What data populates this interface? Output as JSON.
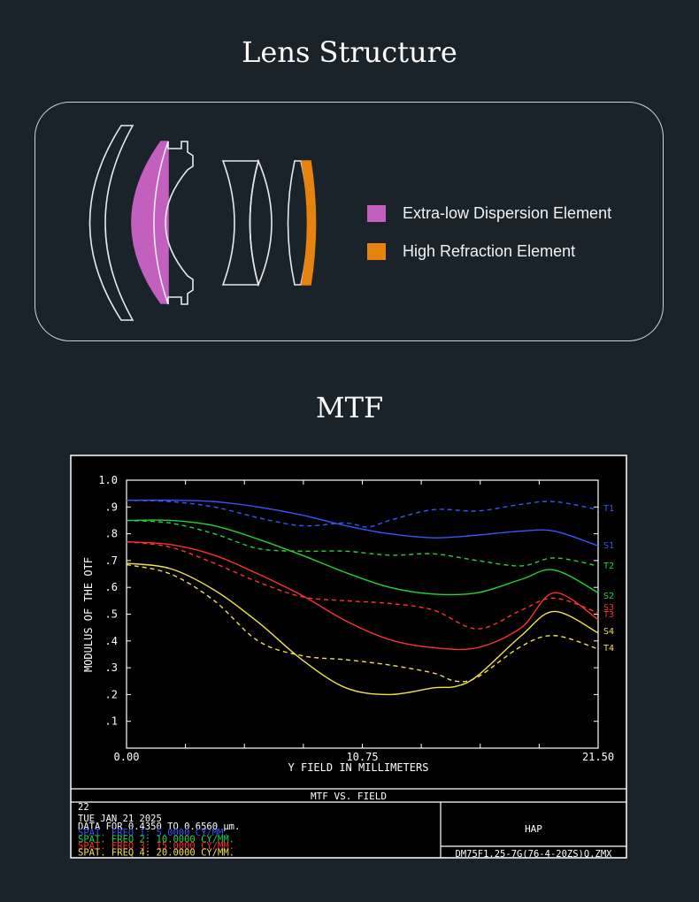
{
  "lens": {
    "title": "Lens Structure",
    "legend": [
      {
        "label": "Extra-low Dispersion Element",
        "color": "#c35fbf"
      },
      {
        "label": "High Refraction Element",
        "color": "#e6830f"
      }
    ]
  },
  "mtf": {
    "title": "MTF",
    "footer": {
      "title": "MTF VS. FIELD",
      "line0": "22",
      "date": "TUE JAN 21 2025",
      "data_range": "DATA FOR 0.4350 TO 0.6560 µm.",
      "freqs": [
        {
          "text": "SPAT. FREQ 1:    5.0000 CY/MM.",
          "color": "#3a55ff"
        },
        {
          "text": "SPAT. FREQ 2:   10.0000 CY/MM.",
          "color": "#23d23a"
        },
        {
          "text": "SPAT. FREQ 3:   15.0000 CY/MM.",
          "color": "#ff3030"
        },
        {
          "text": "SPAT. FREQ 4:   20.0000 CY/MM.",
          "color": "#f2e34a"
        }
      ],
      "company": "HAP",
      "file": "DM75F1.25-7G(76-4-20ZS)Q.ZMX"
    }
  },
  "chart_data": {
    "type": "line",
    "title": "",
    "xlabel": "Y FIELD IN MILLIMETERS",
    "ylabel": "MODULUS OF THE OTF",
    "xlim": [
      0,
      21.5
    ],
    "ylim": [
      0,
      1
    ],
    "xticks": [
      "0.00",
      "10.75",
      "21.50"
    ],
    "yticks": [
      ".1",
      ".2",
      ".3",
      ".4",
      ".5",
      ".6",
      ".7",
      ".8",
      ".9",
      "1.0"
    ],
    "grid": false,
    "series": [
      {
        "name": "T1",
        "style": "dashed",
        "color": "#3a55ff",
        "x": [
          0,
          2,
          4,
          6,
          8,
          10,
          11,
          12,
          14,
          16,
          18,
          19.5,
          21.5
        ],
        "y": [
          0.925,
          0.92,
          0.9,
          0.86,
          0.83,
          0.84,
          0.825,
          0.85,
          0.89,
          0.885,
          0.91,
          0.92,
          0.89
        ]
      },
      {
        "name": "S1",
        "style": "solid",
        "color": "#3a55ff",
        "x": [
          0,
          2,
          4,
          6,
          8,
          10,
          12,
          14,
          16,
          18,
          19.5,
          21.5
        ],
        "y": [
          0.925,
          0.925,
          0.92,
          0.9,
          0.87,
          0.83,
          0.8,
          0.785,
          0.795,
          0.81,
          0.81,
          0.755
        ]
      },
      {
        "name": "T2",
        "style": "dashed",
        "color": "#23d23a",
        "x": [
          0,
          2,
          4,
          6,
          8,
          10,
          12,
          14,
          16,
          18,
          19.5,
          21.5
        ],
        "y": [
          0.85,
          0.84,
          0.8,
          0.745,
          0.735,
          0.735,
          0.72,
          0.725,
          0.7,
          0.68,
          0.71,
          0.68
        ]
      },
      {
        "name": "S2",
        "style": "solid",
        "color": "#23d23a",
        "x": [
          0,
          2,
          4,
          6,
          8,
          10,
          12,
          14,
          16,
          18,
          19.5,
          21.5
        ],
        "y": [
          0.85,
          0.85,
          0.83,
          0.78,
          0.72,
          0.655,
          0.6,
          0.575,
          0.58,
          0.63,
          0.665,
          0.58
        ]
      },
      {
        "name": "S3",
        "style": "dashed",
        "color": "#ff3030",
        "x": [
          0,
          2,
          4,
          6,
          8,
          10,
          12,
          14,
          16,
          18,
          19.5,
          21.5
        ],
        "y": [
          0.77,
          0.75,
          0.69,
          0.62,
          0.565,
          0.55,
          0.54,
          0.515,
          0.445,
          0.515,
          0.56,
          0.505
        ]
      },
      {
        "name": "T3",
        "style": "solid",
        "color": "#ff3030",
        "x": [
          0,
          2,
          4,
          6,
          8,
          10,
          12,
          14,
          16,
          18,
          19.5,
          21.5
        ],
        "y": [
          0.77,
          0.76,
          0.72,
          0.65,
          0.57,
          0.475,
          0.405,
          0.375,
          0.375,
          0.45,
          0.58,
          0.48
        ]
      },
      {
        "name": "S4",
        "style": "solid",
        "color": "#f2e34a",
        "x": [
          0,
          2,
          4,
          6,
          8,
          10,
          12,
          14,
          15,
          16,
          18,
          19.5,
          21.5
        ],
        "y": [
          0.69,
          0.67,
          0.59,
          0.47,
          0.33,
          0.225,
          0.2,
          0.225,
          0.23,
          0.27,
          0.42,
          0.51,
          0.43
        ]
      },
      {
        "name": "T4",
        "style": "dashed",
        "color": "#f2e34a",
        "x": [
          0,
          2,
          4,
          6,
          8,
          10,
          12,
          14,
          15,
          16,
          18,
          19.5,
          21.5
        ],
        "y": [
          0.685,
          0.65,
          0.55,
          0.4,
          0.345,
          0.33,
          0.31,
          0.28,
          0.25,
          0.265,
          0.38,
          0.42,
          0.37
        ]
      }
    ],
    "end_labels": [
      "T1",
      "S1",
      "T2",
      "S2",
      "S3",
      "T3",
      "S4",
      "T4"
    ]
  }
}
